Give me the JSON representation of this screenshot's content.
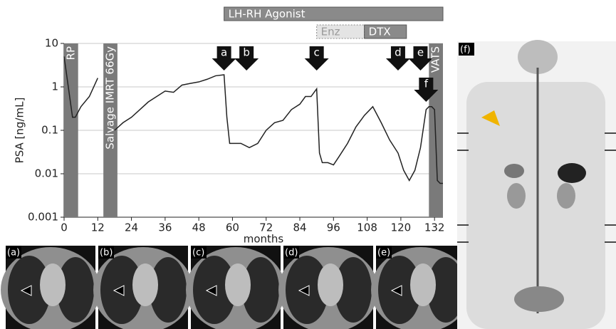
{
  "chart_data": {
    "type": "line",
    "ylabel": "PSA [ng/mL]",
    "xlabel": "months",
    "log_y": true,
    "grid": true,
    "xlim": [
      0,
      135
    ],
    "xticks": [
      0,
      12,
      24,
      36,
      48,
      60,
      72,
      84,
      96,
      108,
      120,
      132
    ],
    "ylim": [
      0.001,
      10
    ],
    "yticks": [
      0.001,
      0.01,
      0.1,
      1,
      10
    ],
    "series": [
      {
        "color": "#222222",
        "x": [
          0,
          3,
          4,
          6,
          9,
          12,
          15,
          18,
          21,
          24,
          27,
          30,
          33,
          36,
          39,
          42,
          45,
          48,
          51,
          54,
          57,
          58,
          59,
          63,
          66,
          69,
          72,
          75,
          78,
          81,
          84,
          86,
          88,
          90,
          91,
          92,
          94,
          96,
          98,
          101,
          104,
          107,
          110,
          113,
          116,
          119,
          121,
          123,
          125,
          127,
          129,
          130,
          131,
          132,
          133,
          134,
          135
        ],
        "values": [
          5,
          0.2,
          0.2,
          0.35,
          0.6,
          1.6,
          null,
          0.1,
          0.15,
          0.2,
          0.3,
          0.45,
          0.6,
          0.8,
          0.75,
          1.1,
          1.2,
          1.3,
          1.5,
          1.8,
          1.9,
          0.2,
          0.05,
          0.05,
          0.04,
          0.05,
          0.1,
          0.15,
          0.17,
          0.3,
          0.4,
          0.6,
          0.6,
          0.9,
          0.03,
          0.018,
          0.018,
          0.016,
          0.025,
          0.05,
          0.12,
          0.22,
          0.35,
          0.15,
          0.06,
          0.03,
          0.012,
          0.007,
          0.012,
          0.04,
          0.3,
          0.35,
          0.35,
          0.3,
          0.007,
          0.006,
          0.006
        ]
      }
    ],
    "interventions": [
      {
        "label": "RP",
        "start": 0,
        "end": 5
      },
      {
        "label": "Salvage IMRT 66Gy",
        "start": 14,
        "end": 19
      },
      {
        "label": "VATS",
        "start": 130,
        "end": 135
      }
    ],
    "treatments": [
      {
        "label": "LH-RH Agonist",
        "start": 57,
        "end": 135
      },
      {
        "label": "Enz",
        "start": 90,
        "end": 107
      },
      {
        "label": "DTX",
        "start": 107,
        "end": 122
      }
    ],
    "arrows": [
      {
        "label": "a",
        "x": 57
      },
      {
        "label": "b",
        "x": 65
      },
      {
        "label": "c",
        "x": 90
      },
      {
        "label": "d",
        "x": 119
      },
      {
        "label": "e",
        "x": 127
      },
      {
        "label": "f",
        "x": 129
      }
    ]
  },
  "panels": [
    {
      "label": "(a)"
    },
    {
      "label": "(b)"
    },
    {
      "label": "(c)"
    },
    {
      "label": "(d)"
    },
    {
      "label": "(e)"
    },
    {
      "label": "(f)"
    }
  ]
}
